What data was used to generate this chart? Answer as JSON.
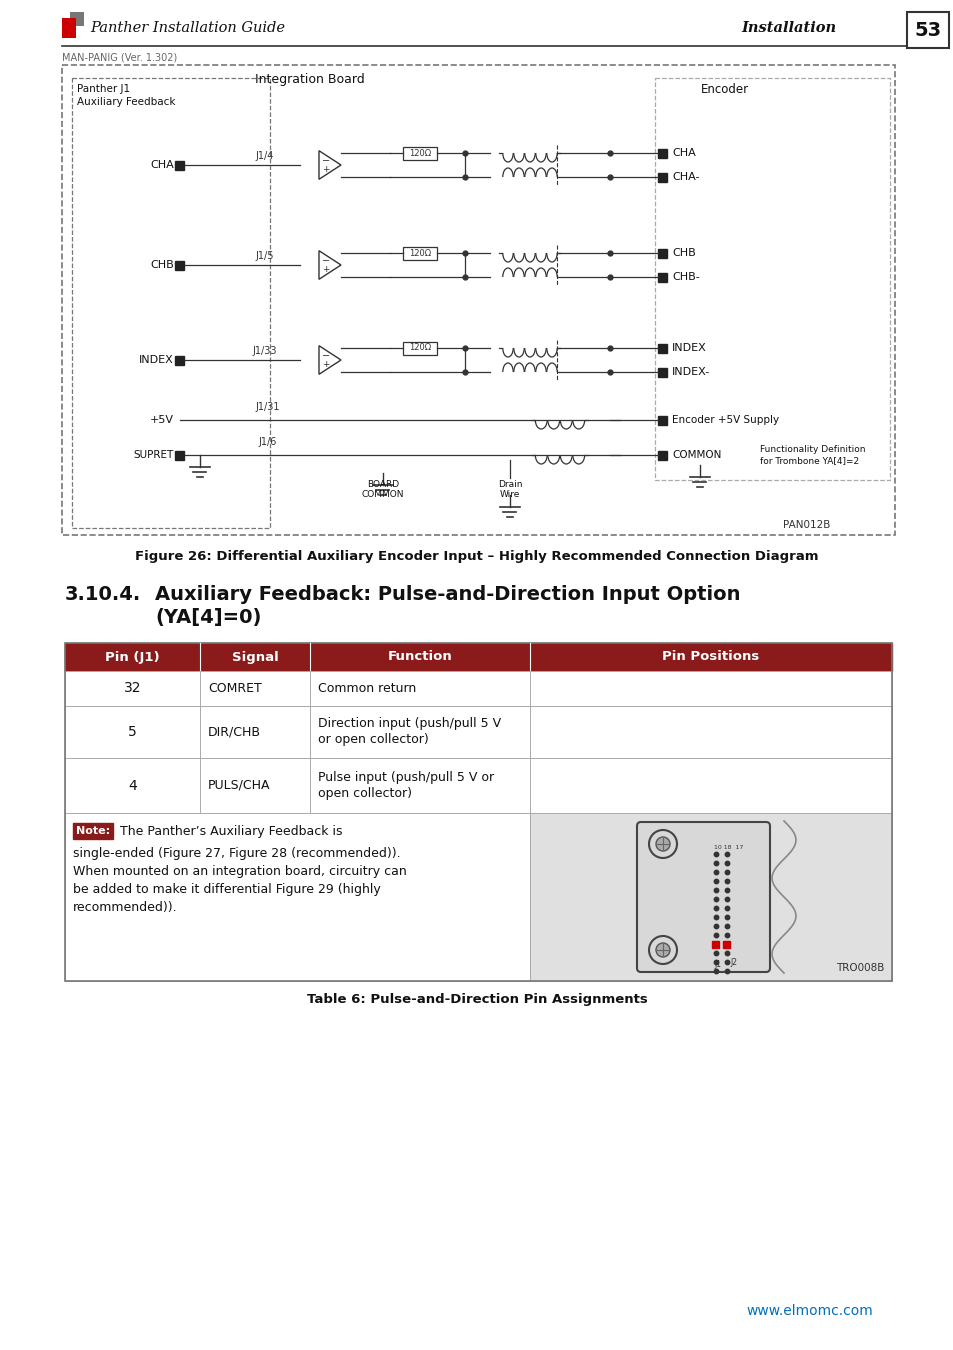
{
  "page_bg": "#ffffff",
  "header_text": "Panther Installation Guide",
  "header_right": "Installation",
  "page_num": "53",
  "subheader": "MAN-PANIG (Ver. 1.302)",
  "figure_caption": "Figure 26: Differential Auxiliary Encoder Input – Highly Recommended Connection Diagram",
  "section_num": "3.10.4.",
  "section_title": "Auxiliary Feedback: Pulse-and-Direction Input Option",
  "section_subtitle": "(YA[4]=0)",
  "table_header_bg": "#8B1A1A",
  "table_header_color": "#ffffff",
  "table_cols": [
    "Pin (J1)",
    "Signal",
    "Function",
    "Pin Positions"
  ],
  "table_rows": [
    [
      "32",
      "COMRET",
      "Common return"
    ],
    [
      "5",
      "DIR/CHB",
      "Direction input (push/pull 5 V\nor open collector)"
    ],
    [
      "4",
      "PULS/CHA",
      "Pulse input (push/pull 5 V or\nopen collector)"
    ]
  ],
  "note_label": "Note:",
  "note_label_bg": "#8B1A1A",
  "note_label_color": "#ffffff",
  "note_text1": " The Panther’s Auxiliary Feedback is",
  "note_text2": "single-ended (Figure 27, Figure 28 (recommended)).",
  "note_text3": "When mounted on an integration board, circuitry can",
  "note_text4": "be added to make it differential Figure 29 (highly",
  "note_text5": "recommended)).",
  "table_caption": "Table 6: Pulse-and-Direction Pin Assignments",
  "footer_url": "www.elmomc.com",
  "footer_url_color": "#0070C0"
}
